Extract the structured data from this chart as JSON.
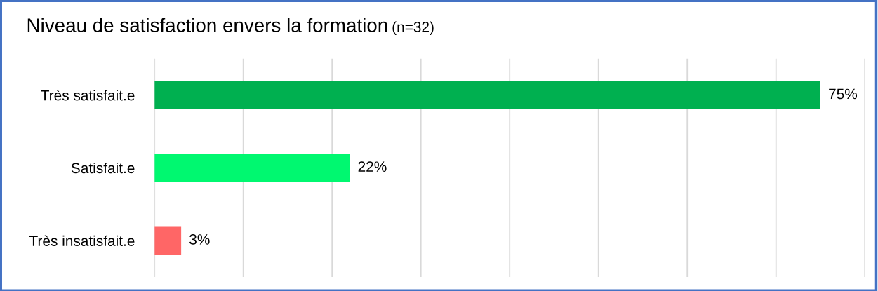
{
  "chart_data": {
    "type": "bar",
    "orientation": "horizontal",
    "title": "Niveau de satisfaction envers la formation",
    "subtitle": "(n=32)",
    "categories": [
      "Très satisfait.e",
      "Satisfait.e",
      "Très insatisfait.e"
    ],
    "values": [
      75,
      22,
      3
    ],
    "colors": [
      "#00b050",
      "#00f870",
      "#ff6666"
    ],
    "value_labels": [
      "75%",
      "22%",
      "3%"
    ],
    "xlim": [
      0,
      80
    ],
    "xticks": [
      {
        "value": 0,
        "label": null
      },
      {
        "value": 10,
        "label": null
      },
      {
        "value": 20,
        "label": null
      },
      {
        "value": 30,
        "label": null
      },
      {
        "value": 40,
        "label": null
      },
      {
        "value": 50,
        "label": null
      },
      {
        "value": 60,
        "label": null
      },
      {
        "value": 70,
        "label": null
      },
      {
        "value": 80,
        "label": null
      }
    ],
    "tick_labels": "y",
    "grid": "x"
  }
}
